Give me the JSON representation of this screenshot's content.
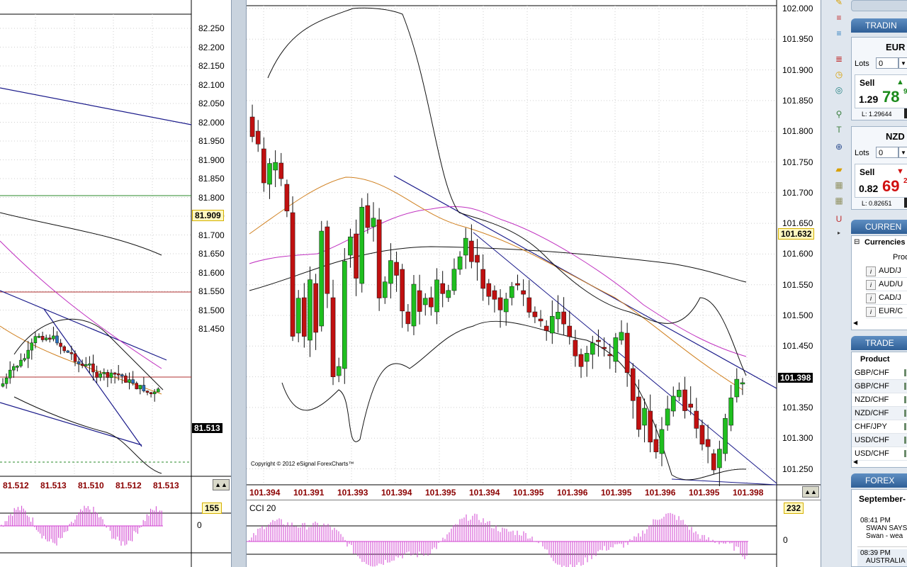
{
  "left_chart": {
    "price_axis": [
      "82.250",
      "82.200",
      "82.150",
      "82.100",
      "82.050",
      "82.000",
      "81.950",
      "81.900",
      "81.850",
      "81.800",
      "81.750",
      "81.700",
      "81.650",
      "81.600",
      "81.550",
      "81.500",
      "81.450"
    ],
    "current_tag": "81.513",
    "level_tag": "81.909",
    "x_labels": [
      "81.512",
      "81.513",
      "81.510",
      "81.512",
      "81.513"
    ],
    "indicator_value": "155",
    "indicator_zero": "0"
  },
  "main_chart": {
    "price_axis": [
      "102.000",
      "101.950",
      "101.900",
      "101.850",
      "101.800",
      "101.750",
      "101.700",
      "101.650",
      "101.600",
      "101.550",
      "101.500",
      "101.450",
      "101.400",
      "101.350",
      "101.300",
      "101.250"
    ],
    "current_tag": "101.398",
    "level_tag": "101.632",
    "copyright": "Copyright © 2012 eSignal ForexCharts™",
    "x_labels": [
      "101.394",
      "101.391",
      "101.393",
      "101.394",
      "101.395",
      "101.394",
      "101.395",
      "101.396",
      "101.395",
      "101.396",
      "101.395",
      "101.398"
    ],
    "indicator_title": "CCI 20",
    "indicator_value": "232",
    "indicator_zero": "0"
  },
  "right_panel": {
    "trading_header": "TRADIN",
    "ticket1": {
      "currency": "EUR",
      "lots_label": "Lots",
      "lots_value": "0",
      "sell_label": "Sell",
      "price_big": "78",
      "price_small": "1.29",
      "price_sup": "9",
      "low": "L: 1.29644",
      "direction": "up",
      "color": "#1a8a1a"
    },
    "ticket2": {
      "currency": "NZD",
      "lots_label": "Lots",
      "lots_value": "0",
      "sell_label": "Sell",
      "price_big": "69",
      "price_small": "0.82",
      "price_sup": "2",
      "low": "L: 0.82651",
      "direction": "down",
      "color": "#d01010"
    },
    "currencies_header": "CURREN",
    "currencies_tab": "Currencies",
    "currencies_col": "Prod",
    "currencies_rows": [
      "AUD/J",
      "AUD/U",
      "CAD/J",
      "EUR/C"
    ],
    "trade_header": "TRADE",
    "trade_col": "Product",
    "trade_rows": [
      "GBP/CHF",
      "GBP/CHF",
      "NZD/CHF",
      "NZD/CHF",
      "CHF/JPY",
      "USD/CHF",
      "USD/CHF"
    ],
    "forex_header": "FOREX",
    "forex_date": "September-",
    "news": [
      {
        "time": "08:41 PM",
        "line1": "SWAN SAYS",
        "line2": "Swan - wea"
      },
      {
        "time": "08:39 PM",
        "line1": "AUSTRALIA",
        "line2": ""
      }
    ]
  }
}
